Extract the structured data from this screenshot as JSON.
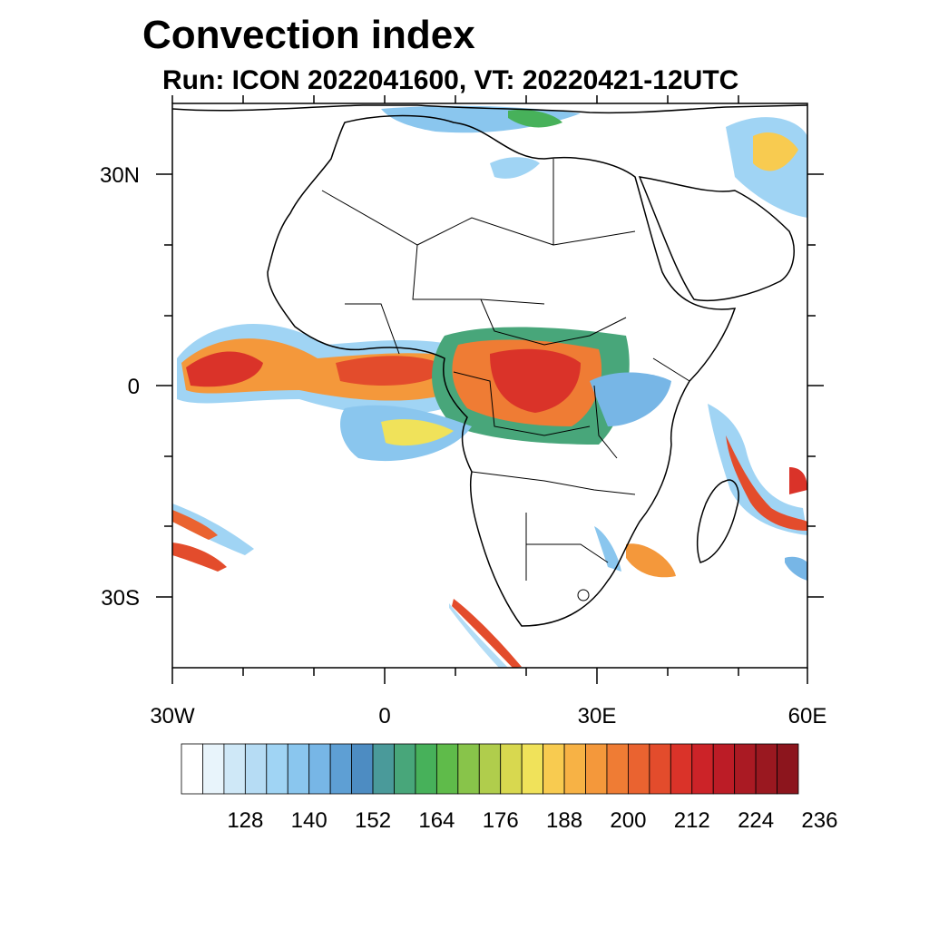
{
  "title": "Convection index",
  "subtitle": "Run: ICON 2022041600,  VT: 20220421-12UTC",
  "axes": {
    "lon_ticks": [
      "30W",
      "0",
      "30E",
      "60E"
    ],
    "lat_ticks": [
      "30N",
      "0",
      "30S"
    ],
    "lon_range": [
      -30,
      60
    ],
    "lat_range": [
      -40,
      40
    ]
  },
  "colorbar": {
    "tick_labels": [
      "128",
      "140",
      "152",
      "164",
      "176",
      "188",
      "200",
      "212",
      "224",
      "236"
    ],
    "colors": [
      "#ffffff",
      "#e8f4fb",
      "#cfe8f7",
      "#b6dcf4",
      "#a0d4f4",
      "#8ac6ee",
      "#77b6e6",
      "#5e9fd4",
      "#4d8cc2",
      "#4a9a9a",
      "#48a67a",
      "#47b15a",
      "#5fbb4a",
      "#88c44a",
      "#b0cd4c",
      "#d8d84f",
      "#f0e25a",
      "#f8cb50",
      "#f7b245",
      "#f4983b",
      "#ef7c34",
      "#ea6330",
      "#e34c2c",
      "#da3329",
      "#cc2328",
      "#bc1c26",
      "#aa1a23",
      "#9a1820",
      "#8c151d"
    ]
  },
  "chart_data": {
    "type": "heatmap",
    "title": "Convection index",
    "subtitle": "Run: ICON 2022041600,  VT: 20220421-12UTC",
    "xlim": [
      -30,
      60
    ],
    "ylim": [
      -40,
      40
    ],
    "xticks": [
      "30W",
      "0",
      "30E",
      "60E"
    ],
    "yticks": [
      "30N",
      "0",
      "30S"
    ],
    "colorbar_levels": [
      128,
      140,
      152,
      164,
      176,
      188,
      200,
      212,
      224,
      236
    ],
    "grid": false,
    "legend": "bottom"
  }
}
